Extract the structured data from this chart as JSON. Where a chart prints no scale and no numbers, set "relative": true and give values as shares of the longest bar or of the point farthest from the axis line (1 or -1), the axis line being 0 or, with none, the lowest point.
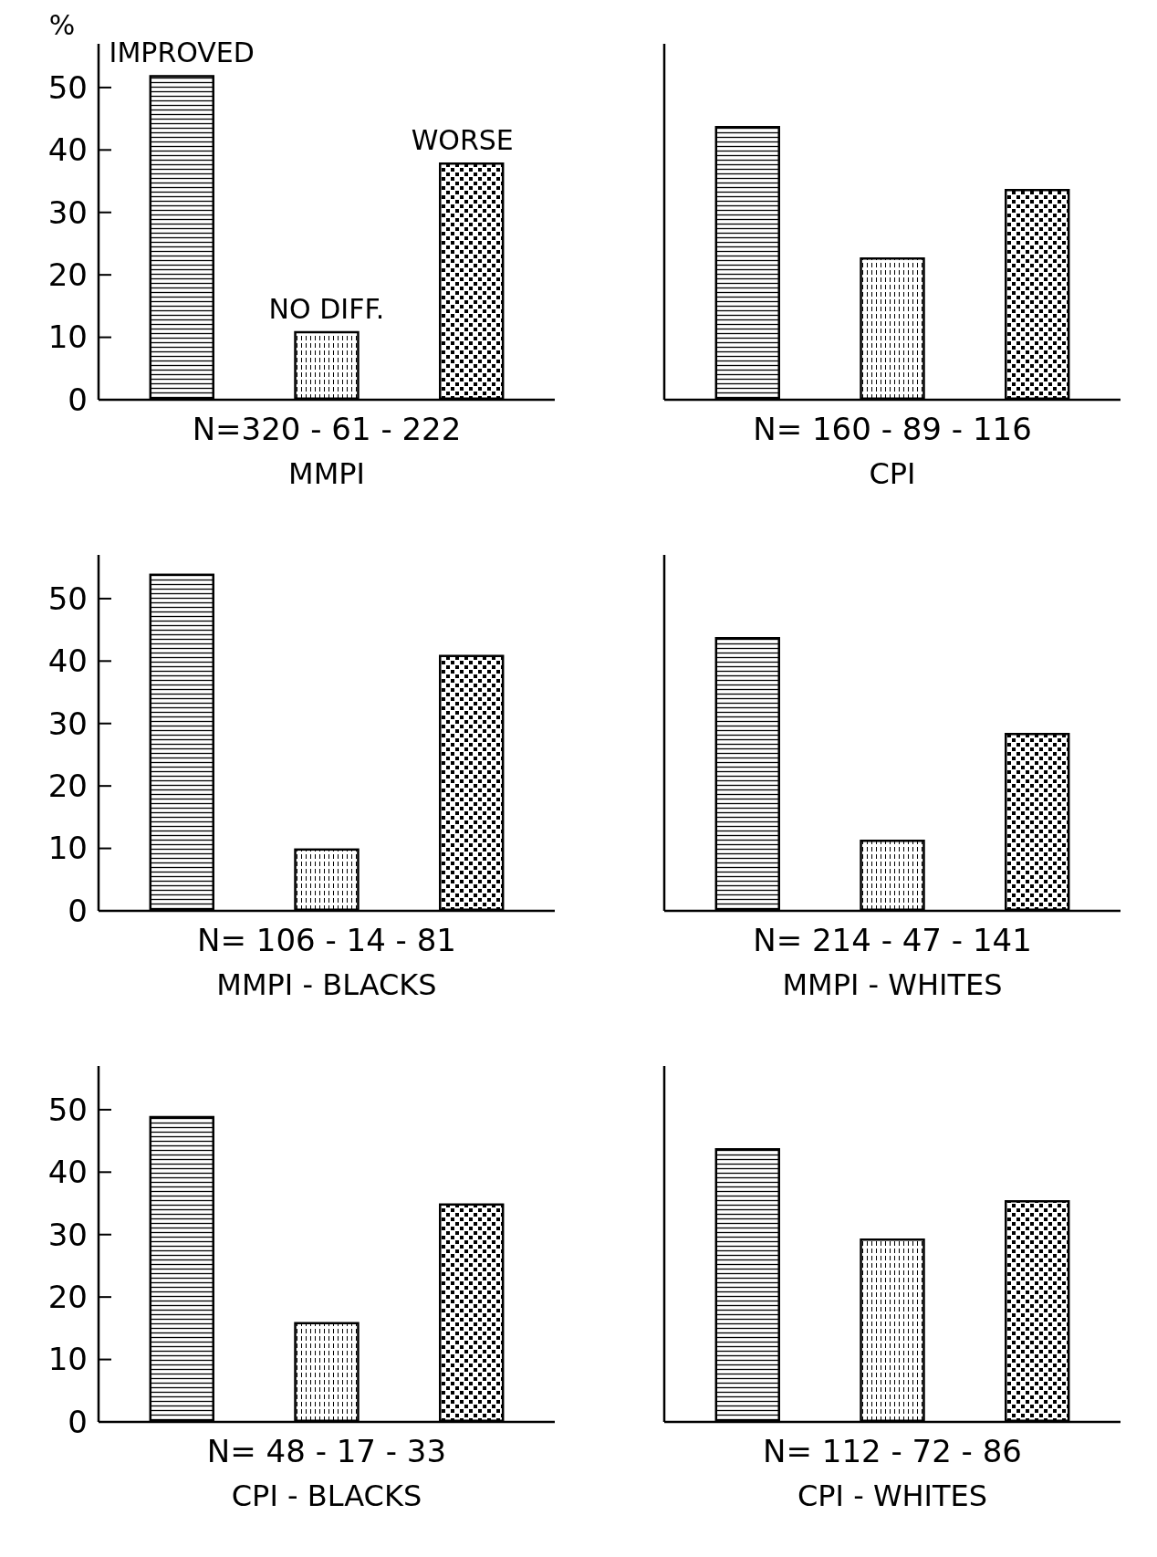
{
  "chart_data": [
    {
      "type": "bar",
      "title": "MMPI",
      "xlabel": "N=320 - 61 - 222",
      "ylabel": "%",
      "categories": [
        "IMPROVED",
        "NO DIFF.",
        "WORSE"
      ],
      "values": [
        52,
        11,
        38
      ],
      "color": "#000000",
      "ylim": [
        0,
        57
      ],
      "yticks": [
        0,
        10,
        20,
        30,
        40,
        50
      ],
      "grid": false
    },
    {
      "type": "bar",
      "title": "CPI",
      "xlabel": "N= 160 - 89 - 116",
      "categories": [
        null,
        null,
        null
      ],
      "values": [
        1,
        0.52,
        0.77
      ],
      "relative": true,
      "color": "#000000",
      "grid": false
    },
    {
      "type": "bar",
      "title": "MMPI - BLACKS",
      "xlabel": "N= 106 - 14 - 81",
      "categories": [
        null,
        null,
        null
      ],
      "values": [
        54,
        10,
        41
      ],
      "color": "#000000",
      "ylim": [
        0,
        57
      ],
      "yticks": [
        0,
        10,
        20,
        30,
        40,
        50
      ],
      "tick_labels": "y",
      "grid": false
    },
    {
      "type": "bar",
      "title": "MMPI - WHITES",
      "xlabel": "N= 214 - 47 - 141",
      "categories": [
        null,
        null,
        null
      ],
      "values": [
        1,
        0.26,
        0.65
      ],
      "relative": true,
      "color": "#000000",
      "grid": false
    },
    {
      "type": "bar",
      "title": "CPI - BLACKS",
      "xlabel": "N= 48 - 17 - 33",
      "categories": [
        null,
        null,
        null
      ],
      "values": [
        49,
        16,
        35
      ],
      "color": "#000000",
      "ylim": [
        0,
        57
      ],
      "yticks": [
        0,
        10,
        20,
        30,
        40,
        50
      ],
      "tick_labels": "y",
      "grid": false
    },
    {
      "type": "bar",
      "title": "CPI - WHITES",
      "xlabel": "N= 112 - 72 - 86",
      "categories": [
        null,
        null,
        null
      ],
      "values": [
        1,
        0.67,
        0.81
      ],
      "relative": true,
      "color": "#000000",
      "grid": false
    }
  ]
}
